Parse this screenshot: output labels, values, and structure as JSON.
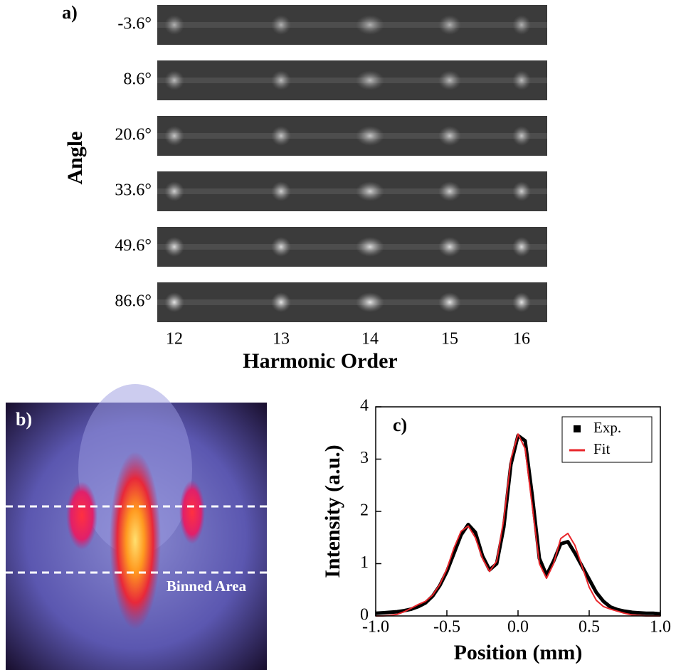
{
  "panel_a": {
    "label": "a)",
    "ylabel": "Angle",
    "angles": [
      "-3.6°",
      "8.6°",
      "20.6°",
      "33.6°",
      "49.6°",
      "86.6°"
    ],
    "harmonic_orders": [
      12,
      13,
      14,
      15,
      16
    ],
    "xlabel": "Harmonic Order"
  },
  "panel_b": {
    "label": "b)",
    "annotation": "Binned Area"
  },
  "chart_data": {
    "type": "line",
    "label": "c)",
    "xlabel": "Position (mm)",
    "ylabel": "Intensity (a.u.)",
    "x": [
      -1.0,
      -0.95,
      -0.9,
      -0.85,
      -0.8,
      -0.75,
      -0.7,
      -0.65,
      -0.6,
      -0.55,
      -0.5,
      -0.45,
      -0.4,
      -0.35,
      -0.3,
      -0.25,
      -0.2,
      -0.15,
      -0.1,
      -0.05,
      0.0,
      0.05,
      0.1,
      0.15,
      0.2,
      0.25,
      0.3,
      0.35,
      0.4,
      0.45,
      0.5,
      0.55,
      0.6,
      0.65,
      0.7,
      0.75,
      0.8,
      0.85,
      0.9,
      0.95,
      1.0
    ],
    "series": [
      {
        "name": "Exp.",
        "color": "#000000",
        "values": [
          0.05,
          0.06,
          0.07,
          0.08,
          0.1,
          0.13,
          0.18,
          0.25,
          0.38,
          0.58,
          0.85,
          1.2,
          1.55,
          1.75,
          1.6,
          1.15,
          0.88,
          1.0,
          1.7,
          2.9,
          3.45,
          3.35,
          2.3,
          1.1,
          0.78,
          1.05,
          1.38,
          1.42,
          1.2,
          0.95,
          0.7,
          0.45,
          0.28,
          0.17,
          0.12,
          0.09,
          0.07,
          0.06,
          0.05,
          0.05,
          0.04
        ]
      },
      {
        "name": "Fit",
        "color": "#e8262b",
        "values": [
          0.0,
          0.0,
          0.01,
          0.03,
          0.08,
          0.15,
          0.22,
          0.28,
          0.4,
          0.6,
          0.9,
          1.3,
          1.62,
          1.72,
          1.5,
          1.1,
          0.85,
          1.05,
          1.85,
          3.0,
          3.48,
          3.2,
          2.1,
          1.0,
          0.72,
          1.0,
          1.48,
          1.58,
          1.35,
          0.95,
          0.55,
          0.3,
          0.18,
          0.13,
          0.09,
          0.05,
          0.02,
          0.01,
          0.0,
          0.0,
          0.0
        ]
      }
    ],
    "xlim": [
      -1.0,
      1.0
    ],
    "xticks": [
      {
        "value": -1.0,
        "label": "-1.0"
      },
      {
        "value": -0.5,
        "label": "-0.5"
      },
      {
        "value": 0.0,
        "label": "0.0"
      },
      {
        "value": 0.5,
        "label": "0.5"
      },
      {
        "value": 1.0,
        "label": "1.0"
      }
    ],
    "ylim": [
      0,
      4
    ],
    "yticks": [
      0,
      1,
      2,
      3,
      4
    ],
    "legend": "upper right"
  }
}
